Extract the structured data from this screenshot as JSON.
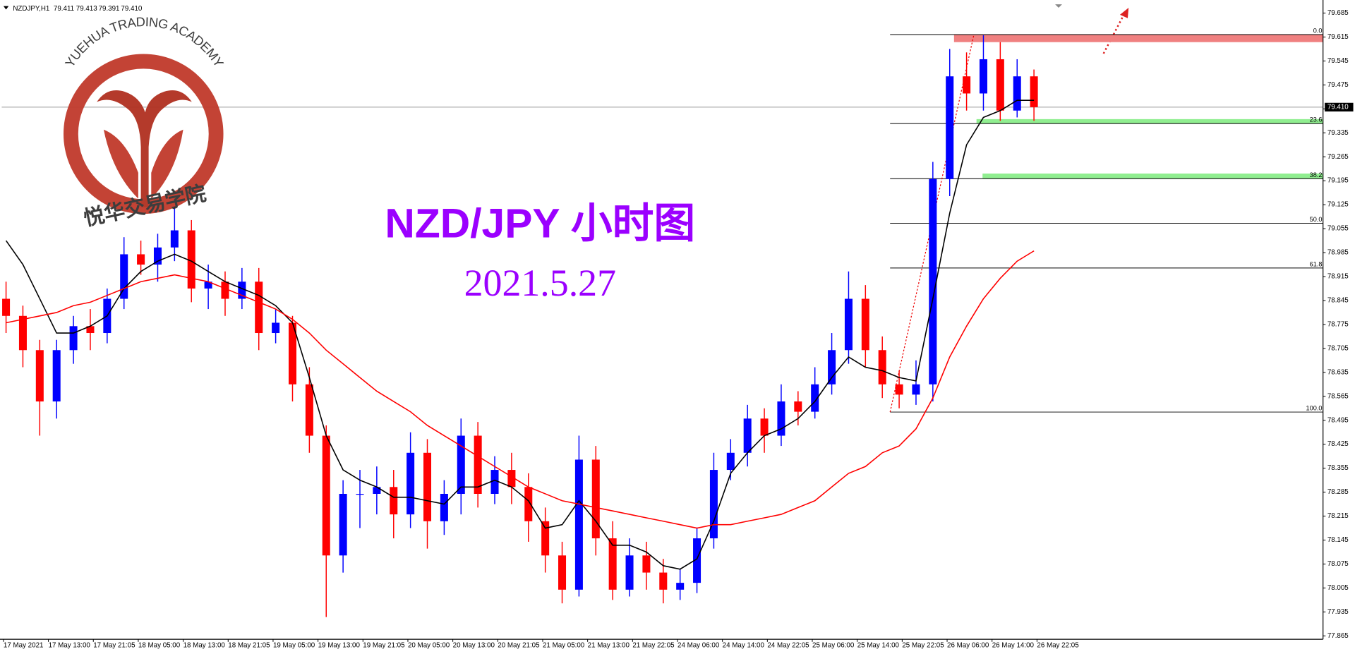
{
  "header": {
    "symbol": "NZDJPY,H1",
    "ohlc": [
      "79.411",
      "79.413",
      "79.391",
      "79.410"
    ]
  },
  "watermark": {
    "en": "YUEHUA TRADING ACADEMY",
    "cn": "悦华交易学院"
  },
  "chart_data": {
    "type": "candlestick",
    "title": "NZD/JPY 小时图",
    "subtitle": "2021.5.27",
    "up_color": "#0000ff",
    "down_color": "#ff0000",
    "xlabels": [
      "17 May 2021",
      "17 May 13:00",
      "17 May 21:05",
      "18 May 05:00",
      "18 May 13:00",
      "18 May 21:05",
      "19 May 05:00",
      "19 May 13:00",
      "19 May 21:05",
      "20 May 05:00",
      "20 May 13:00",
      "20 May 21:05",
      "21 May 05:00",
      "21 May 13:00",
      "21 May 22:05",
      "24 May 06:00",
      "24 May 14:00",
      "24 May 22:05",
      "25 May 06:00",
      "25 May 14:00",
      "25 May 22:05",
      "26 May 06:00",
      "26 May 14:00",
      "26 May 22:05"
    ],
    "open": [
      78.85,
      78.8,
      78.7,
      78.55,
      78.7,
      78.77,
      78.75,
      78.85,
      78.98,
      78.95,
      79.0,
      79.05,
      78.88,
      78.9,
      78.85,
      78.9,
      78.75,
      78.78,
      78.6,
      78.45,
      78.1,
      78.28,
      78.28,
      78.3,
      78.22,
      78.4,
      78.2,
      78.28,
      78.45,
      78.28,
      78.35,
      78.3,
      78.2,
      78.1,
      78.0,
      78.38,
      78.15,
      78.0,
      78.1,
      78.05,
      78.0,
      78.02,
      78.15,
      78.35,
      78.4,
      78.5,
      78.45,
      78.55,
      78.52,
      78.6,
      78.7,
      78.85,
      78.7,
      78.6,
      78.57,
      78.6,
      79.2,
      79.5,
      79.45,
      79.55,
      79.4,
      79.5
    ],
    "high": [
      78.9,
      78.83,
      78.73,
      78.73,
      78.8,
      78.82,
      78.88,
      79.03,
      79.02,
      79.04,
      79.12,
      79.08,
      78.95,
      78.93,
      78.94,
      78.94,
      78.82,
      78.8,
      78.65,
      78.48,
      78.32,
      78.35,
      78.36,
      78.35,
      78.46,
      78.44,
      78.32,
      78.5,
      78.49,
      78.39,
      78.4,
      78.34,
      78.24,
      78.14,
      78.45,
      78.42,
      78.2,
      78.15,
      78.14,
      78.09,
      78.06,
      78.18,
      78.4,
      78.44,
      78.54,
      78.53,
      78.6,
      78.58,
      78.65,
      78.75,
      78.93,
      78.89,
      78.74,
      78.64,
      78.67,
      79.25,
      79.58,
      79.57,
      79.62,
      79.6,
      79.55,
      79.52
    ],
    "low": [
      78.75,
      78.65,
      78.45,
      78.5,
      78.66,
      78.7,
      78.72,
      78.82,
      78.92,
      78.9,
      78.96,
      78.84,
      78.82,
      78.8,
      78.82,
      78.7,
      78.72,
      78.55,
      78.4,
      77.92,
      78.05,
      78.18,
      78.22,
      78.15,
      78.18,
      78.12,
      78.16,
      78.22,
      78.24,
      78.25,
      78.25,
      78.14,
      78.05,
      77.96,
      77.98,
      78.1,
      77.97,
      77.98,
      78.0,
      77.96,
      77.97,
      77.99,
      78.12,
      78.32,
      78.36,
      78.4,
      78.42,
      78.48,
      78.5,
      78.57,
      78.66,
      78.65,
      78.56,
      78.53,
      78.54,
      78.55,
      79.15,
      79.4,
      79.4,
      79.37,
      79.38,
      79.37
    ],
    "close": [
      78.8,
      78.7,
      78.55,
      78.7,
      78.77,
      78.75,
      78.85,
      78.98,
      78.95,
      79.0,
      79.05,
      78.88,
      78.9,
      78.85,
      78.9,
      78.75,
      78.78,
      78.6,
      78.45,
      78.1,
      78.28,
      78.28,
      78.3,
      78.22,
      78.4,
      78.2,
      78.28,
      78.45,
      78.28,
      78.35,
      78.3,
      78.2,
      78.1,
      78.0,
      78.38,
      78.15,
      78.0,
      78.1,
      78.05,
      78.0,
      78.02,
      78.15,
      78.35,
      78.4,
      78.5,
      78.45,
      78.55,
      78.52,
      78.6,
      78.7,
      78.85,
      78.7,
      78.6,
      78.57,
      78.6,
      79.2,
      79.5,
      79.45,
      79.55,
      79.4,
      79.5,
      79.41
    ],
    "lines": [
      {
        "color": "#000000",
        "values": [
          79.02,
          78.95,
          78.85,
          78.75,
          78.75,
          78.77,
          78.8,
          78.88,
          78.93,
          78.96,
          78.98,
          78.96,
          78.93,
          78.9,
          78.88,
          78.86,
          78.83,
          78.78,
          78.62,
          78.45,
          78.35,
          78.32,
          78.3,
          78.27,
          78.27,
          78.26,
          78.25,
          78.3,
          78.3,
          78.32,
          78.3,
          78.26,
          78.18,
          78.19,
          78.26,
          78.2,
          78.13,
          78.13,
          78.11,
          78.07,
          78.06,
          78.09,
          78.2,
          78.34,
          78.4,
          78.45,
          78.47,
          78.5,
          78.55,
          78.62,
          78.68,
          78.65,
          78.64,
          78.62,
          78.61,
          78.85,
          79.1,
          79.3,
          79.38,
          79.4,
          79.43,
          79.43
        ]
      },
      {
        "color": "#ff0000",
        "values": [
          78.78,
          78.79,
          78.8,
          78.81,
          78.83,
          78.84,
          78.86,
          78.88,
          78.9,
          78.91,
          78.92,
          78.91,
          78.9,
          78.88,
          78.86,
          78.84,
          78.82,
          78.79,
          78.75,
          78.7,
          78.66,
          78.62,
          78.58,
          78.55,
          78.52,
          78.48,
          78.45,
          78.42,
          78.39,
          78.36,
          78.33,
          78.3,
          78.28,
          78.26,
          78.25,
          78.24,
          78.23,
          78.22,
          78.21,
          78.2,
          78.19,
          78.18,
          78.19,
          78.19,
          78.2,
          78.21,
          78.22,
          78.24,
          78.26,
          78.3,
          78.34,
          78.36,
          78.4,
          78.42,
          78.47,
          78.56,
          78.68,
          78.77,
          78.85,
          78.91,
          78.96,
          78.99
        ]
      }
    ],
    "fib_levels": [
      {
        "label": "0.0",
        "price": 79.622
      },
      {
        "label": "23.6",
        "price": 79.362
      },
      {
        "label": "38.2",
        "price": 79.201
      },
      {
        "label": "50.0",
        "price": 79.0705
      },
      {
        "label": "61.8",
        "price": 78.94
      },
      {
        "label": "100.0",
        "price": 78.519
      }
    ],
    "zones": [
      {
        "color": "#f08080",
        "from": 79.6,
        "to": 79.622
      },
      {
        "color": "#90ee90",
        "from": 79.362,
        "to": 79.375
      },
      {
        "color": "#90ee90",
        "from": 79.201,
        "to": 79.216
      }
    ],
    "current_price": {
      "value": 79.41,
      "label": "79.410"
    },
    "ylim": [
      77.855,
      79.718
    ],
    "yticks": [
      77.865,
      77.935,
      78.005,
      78.075,
      78.145,
      78.215,
      78.285,
      78.355,
      78.425,
      78.495,
      78.565,
      78.635,
      78.705,
      78.775,
      78.845,
      78.915,
      78.985,
      79.055,
      79.125,
      79.195,
      79.265,
      79.335,
      79.405,
      79.475,
      79.545,
      79.615,
      79.685
    ]
  }
}
